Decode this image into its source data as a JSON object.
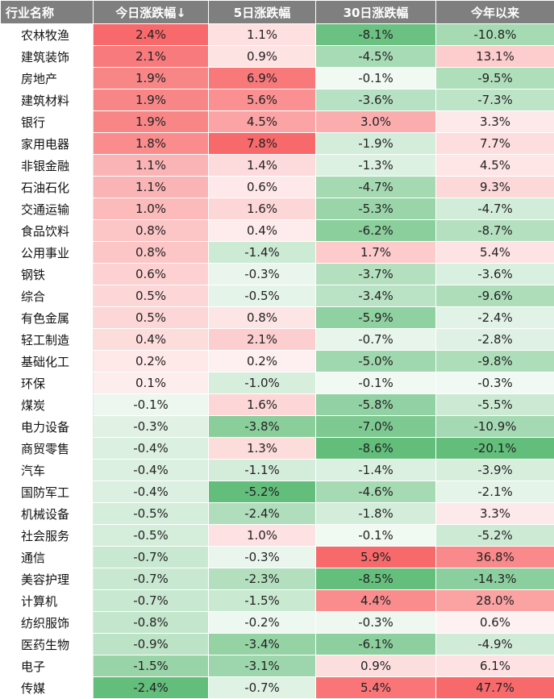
{
  "chart_data": {
    "type": "table",
    "columns": [
      "行业名称",
      "今日涨跌幅↓",
      "5日涨跌幅",
      "30日涨跌幅",
      "今年以来"
    ],
    "rows": [
      [
        "农林牧渔",
        "2.4%",
        "1.1%",
        "-8.1%",
        "-10.8%"
      ],
      [
        "建筑装饰",
        "2.1%",
        "0.9%",
        "-4.5%",
        "13.1%"
      ],
      [
        "房地产",
        "1.9%",
        "6.9%",
        "-0.1%",
        "-9.5%"
      ],
      [
        "建筑材料",
        "1.9%",
        "5.6%",
        "-3.6%",
        "-7.3%"
      ],
      [
        "银行",
        "1.9%",
        "4.5%",
        "3.0%",
        "3.3%"
      ],
      [
        "家用电器",
        "1.8%",
        "7.8%",
        "-1.9%",
        "7.7%"
      ],
      [
        "非银金融",
        "1.1%",
        "1.4%",
        "-1.3%",
        "4.5%"
      ],
      [
        "石油石化",
        "1.1%",
        "0.6%",
        "-4.7%",
        "9.3%"
      ],
      [
        "交通运输",
        "1.0%",
        "1.6%",
        "-5.3%",
        "-4.7%"
      ],
      [
        "食品饮料",
        "0.8%",
        "0.4%",
        "-6.2%",
        "-8.7%"
      ],
      [
        "公用事业",
        "0.8%",
        "-1.4%",
        "1.7%",
        "5.4%"
      ],
      [
        "钢铁",
        "0.6%",
        "-0.3%",
        "-3.7%",
        "-3.6%"
      ],
      [
        "综合",
        "0.5%",
        "-0.5%",
        "-3.4%",
        "-9.6%"
      ],
      [
        "有色金属",
        "0.5%",
        "0.8%",
        "-5.9%",
        "-2.4%"
      ],
      [
        "轻工制造",
        "0.4%",
        "2.1%",
        "-0.7%",
        "-2.8%"
      ],
      [
        "基础化工",
        "0.2%",
        "0.2%",
        "-5.0%",
        "-9.8%"
      ],
      [
        "环保",
        "0.1%",
        "-1.0%",
        "-0.1%",
        "-0.3%"
      ],
      [
        "煤炭",
        "-0.1%",
        "1.6%",
        "-5.8%",
        "-5.5%"
      ],
      [
        "电力设备",
        "-0.3%",
        "-3.8%",
        "-7.0%",
        "-10.9%"
      ],
      [
        "商贸零售",
        "-0.4%",
        "1.3%",
        "-8.6%",
        "-20.1%"
      ],
      [
        "汽车",
        "-0.4%",
        "-1.1%",
        "-1.4%",
        "-3.9%"
      ],
      [
        "国防军工",
        "-0.4%",
        "-5.2%",
        "-4.6%",
        "-2.1%"
      ],
      [
        "机械设备",
        "-0.5%",
        "-2.4%",
        "-1.8%",
        "3.3%"
      ],
      [
        "社会服务",
        "-0.5%",
        "1.0%",
        "-0.1%",
        "-5.2%"
      ],
      [
        "通信",
        "-0.7%",
        "-0.3%",
        "5.9%",
        "36.8%"
      ],
      [
        "美容护理",
        "-0.7%",
        "-2.3%",
        "-8.5%",
        "-14.3%"
      ],
      [
        "计算机",
        "-0.7%",
        "-1.5%",
        "4.4%",
        "28.0%"
      ],
      [
        "纺织服饰",
        "-0.8%",
        "-0.2%",
        "-0.3%",
        "0.6%"
      ],
      [
        "医药生物",
        "-0.9%",
        "-3.4%",
        "-6.1%",
        "-4.9%"
      ],
      [
        "电子",
        "-1.5%",
        "-3.1%",
        "0.9%",
        "6.1%"
      ],
      [
        "传媒",
        "-2.4%",
        "-0.7%",
        "5.4%",
        "47.7%"
      ]
    ],
    "colors": {
      "header_bg": "#7f7f7f",
      "header_text": "#ffffff",
      "positive": "#f8696b",
      "negative": "#63be7b",
      "neutral": "#ffffff"
    }
  }
}
